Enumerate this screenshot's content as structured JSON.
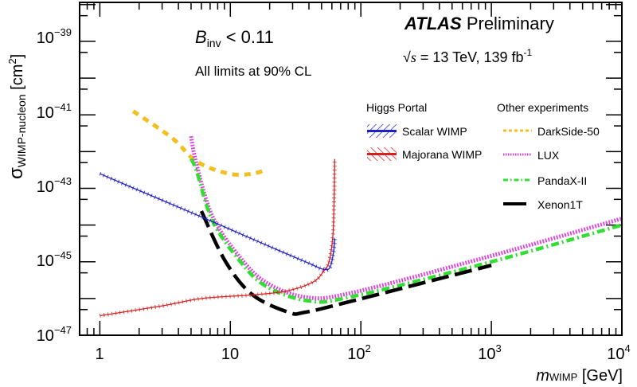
{
  "chart_data": {
    "type": "line",
    "xscale": "log",
    "yscale": "log",
    "xlim": [
      0.7,
      10000
    ],
    "ylim": [
      1e-47,
      1.15e-38
    ],
    "xlabel": {
      "main": "m",
      "sub": "WIMP",
      "unit": " [GeV]"
    },
    "ylabel": {
      "main": "σ",
      "sub": "WIMP-nucleon",
      "unit": " [cm",
      "unit_sup": "2",
      "unit_close": "]"
    },
    "xticks": [
      {
        "base": "1",
        "exp": ""
      },
      {
        "base": "10",
        "exp": ""
      },
      {
        "base": "10",
        "exp": "2"
      },
      {
        "base": "10",
        "exp": "3"
      },
      {
        "base": "10",
        "exp": "4"
      }
    ],
    "yticks": [
      {
        "base": "10",
        "exp": "−39"
      },
      {
        "base": "10",
        "exp": "−41"
      },
      {
        "base": "10",
        "exp": "−43"
      },
      {
        "base": "10",
        "exp": "−45"
      },
      {
        "base": "10",
        "exp": "−47"
      }
    ],
    "annotations": {
      "binv_main": "B",
      "binv_sub": "inv",
      "binv_rest": " < 0.11",
      "cl": "All limits at 90% CL",
      "atlas": "ATLAS",
      "preliminary": " Preliminary",
      "energy_sqrt": "√",
      "energy_s": "s",
      "energy_rest": " = 13 TeV, 139 fb",
      "energy_sup": "-1"
    },
    "legend": {
      "group1_title": "Higgs Portal",
      "group2_title": "Other experiments",
      "position": "top-right"
    },
    "series": [
      {
        "name": "Scalar WIMP",
        "group": "Higgs Portal",
        "color": "#1f1fc8",
        "points": [
          [
            1,
            2.5e-43
          ],
          [
            2,
            8.7e-44
          ],
          [
            5,
            2.2e-44
          ],
          [
            10,
            7.6e-45
          ],
          [
            20,
            2.6e-45
          ],
          [
            40,
            9.1e-46
          ],
          [
            51,
            6.3e-46
          ],
          [
            58,
            7e-46
          ],
          [
            62,
            2e-45
          ],
          [
            63,
            4.3e-45
          ]
        ]
      },
      {
        "name": "Majorana WIMP",
        "group": "Higgs Portal",
        "color": "#d42020",
        "points": [
          [
            1,
            3.4e-47
          ],
          [
            3,
            6.3e-47
          ],
          [
            6,
            1e-46
          ],
          [
            15,
            1.26e-46
          ],
          [
            27,
            1.6e-46
          ],
          [
            43,
            2.8e-46
          ],
          [
            52,
            5.6e-46
          ],
          [
            57,
            1e-45
          ],
          [
            61,
            5e-45
          ],
          [
            62.5,
            6.3e-44
          ],
          [
            63,
            6.3e-43
          ]
        ]
      },
      {
        "name": "DarkSide-50",
        "group": "Other experiments",
        "color": "#f0c020",
        "points": [
          [
            1.8,
            1.26e-41
          ],
          [
            3.6,
            2.3e-42
          ],
          [
            5.5,
            5.4e-43
          ],
          [
            9.7,
            2.5e-43
          ],
          [
            14.8,
            2.5e-43
          ],
          [
            18.6,
            3.2e-43
          ]
        ]
      },
      {
        "name": "LUX",
        "group": "Other experiments",
        "color": "#e040e0",
        "points": [
          [
            5,
            2.6e-42
          ],
          [
            5.5,
            4.6e-43
          ],
          [
            7.3,
            1.7e-44
          ],
          [
            11.7,
            1.4e-45
          ],
          [
            18.6,
            2.8e-46
          ],
          [
            37,
            1.1e-46
          ],
          [
            83,
            1.4e-46
          ],
          [
            1000,
            1.45e-45
          ],
          [
            10000,
            1.5e-44
          ]
        ]
      },
      {
        "name": "PandaX-II",
        "group": "Other experiments",
        "color": "#33dd33",
        "points": [
          [
            5,
            6.3e-43
          ],
          [
            5.5,
            3e-43
          ],
          [
            7.3,
            1.3e-44
          ],
          [
            11.7,
            1.1e-45
          ],
          [
            18.6,
            2.2e-46
          ],
          [
            39,
            8.7e-47
          ],
          [
            83,
            1.1e-46
          ],
          [
            1000,
            1e-45
          ],
          [
            10000,
            1e-44
          ]
        ]
      },
      {
        "name": "Xenon1T",
        "group": "Other experiments",
        "color": "#000000",
        "points": [
          [
            6,
            2.4e-44
          ],
          [
            9.2,
            1e-45
          ],
          [
            14.8,
            1.26e-46
          ],
          [
            28,
            4.2e-47
          ],
          [
            37,
            4.2e-47
          ],
          [
            83,
            8.3e-47
          ],
          [
            1000,
            8e-46
          ]
        ]
      }
    ]
  }
}
